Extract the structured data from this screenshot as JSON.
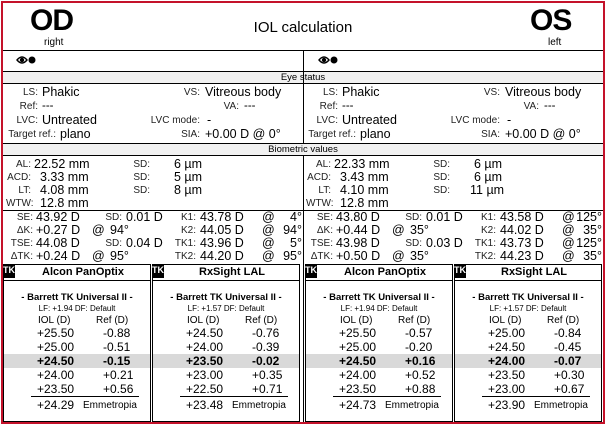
{
  "header": {
    "od_label": "OD",
    "od_sub": "right",
    "os_label": "OS",
    "os_sub": "left",
    "title": "IOL calculation",
    "eye_icon": "eye-icon",
    "accent_color": "#c4122a"
  },
  "sections": {
    "eye_status": "Eye status",
    "biometric": "Biometric values"
  },
  "labels": {
    "ls": "LS:",
    "vs": "VS:",
    "ref": "Ref:",
    "va": "VA:",
    "lvc": "LVC:",
    "lvc_mode": "LVC mode:",
    "target_ref": "Target ref.:",
    "sia": "SIA:",
    "al": "AL:",
    "acd": "ACD:",
    "lt": "LT:",
    "wtw": "WTW:",
    "sd": "SD:",
    "se": "SE:",
    "dk": "ΔK:",
    "tse": "TSE:",
    "dtk": "ΔTK:",
    "k1": "K1:",
    "k2": "K2:",
    "tk1": "TK1:",
    "tk2": "TK2:",
    "at": "@"
  },
  "od": {
    "status": {
      "ls": "Phakic",
      "vs": "Vitreous body",
      "ref": "---",
      "va": "---",
      "lvc": "Untreated",
      "lvc_mode": "-",
      "target_ref": "plano",
      "sia": "+0.00 D @ 0°"
    },
    "bio": {
      "al": "22.52 mm",
      "al_sd": "6 µm",
      "acd": "3.33 mm",
      "acd_sd": "5 µm",
      "lt": "4.08 mm",
      "lt_sd": "8 µm",
      "wtw": "12.8 mm"
    },
    "kera": {
      "se": "43.92 D",
      "se_sd": "0.01 D",
      "dk": "+0.27 D",
      "dk_ax": "94°",
      "tse": "44.08 D",
      "tse_sd": "0.04 D",
      "dtk": "+0.24 D",
      "dtk_ax": "95°",
      "k1": "43.78 D",
      "k1_ax": "4°",
      "k2": "44.05 D",
      "k2_ax": "94°",
      "tk1": "43.96 D",
      "tk1_ax": "5°",
      "tk2": "44.20 D",
      "tk2_ax": "95°"
    },
    "lenses": [
      {
        "tk": "TK",
        "name": "Alcon PanOptix",
        "formula": "- Barrett TK Universal II -",
        "lf": "LF: +1.94  DF: Default",
        "col_iol": "IOL (D)",
        "col_ref": "Ref (D)",
        "rows": [
          [
            "+25.50",
            "-0.88"
          ],
          [
            "+25.00",
            "-0.51"
          ],
          [
            "+24.50",
            "-0.15"
          ],
          [
            "+24.00",
            "+0.21"
          ],
          [
            "+23.50",
            "+0.56"
          ]
        ],
        "highlight": 2,
        "emm_iol": "+24.29",
        "emm_label": "Emmetropia"
      },
      {
        "tk": "TK",
        "name": "RxSight LAL",
        "formula": "- Barrett TK Universal II -",
        "lf": "LF: +1.57  DF: Default",
        "col_iol": "IOL (D)",
        "col_ref": "Ref (D)",
        "rows": [
          [
            "+24.50",
            "-0.76"
          ],
          [
            "+24.00",
            "-0.39"
          ],
          [
            "+23.50",
            "-0.02"
          ],
          [
            "+23.00",
            "+0.35"
          ],
          [
            "+22.50",
            "+0.71"
          ]
        ],
        "highlight": 2,
        "emm_iol": "+23.48",
        "emm_label": "Emmetropia"
      }
    ]
  },
  "os": {
    "status": {
      "ls": "Phakic",
      "vs": "Vitreous body",
      "ref": "---",
      "va": "---",
      "lvc": "Untreated",
      "lvc_mode": "-",
      "target_ref": "plano",
      "sia": "+0.00 D @ 0°"
    },
    "bio": {
      "al": "22.33 mm",
      "al_sd": "6 µm",
      "acd": "3.43 mm",
      "acd_sd": "6 µm",
      "lt": "4.10 mm",
      "lt_sd": "11 µm",
      "wtw": "12.8 mm"
    },
    "kera": {
      "se": "43.80 D",
      "se_sd": "0.01 D",
      "dk": "+0.44 D",
      "dk_ax": "35°",
      "tse": "43.98 D",
      "tse_sd": "0.03 D",
      "dtk": "+0.50 D",
      "dtk_ax": "35°",
      "k1": "43.58 D",
      "k1_ax": "125°",
      "k2": "44.02 D",
      "k2_ax": "35°",
      "tk1": "43.73 D",
      "tk1_ax": "125°",
      "tk2": "44.23 D",
      "tk2_ax": "35°"
    },
    "lenses": [
      {
        "tk": "TK",
        "name": "Alcon PanOptix",
        "formula": "- Barrett TK Universal II -",
        "lf": "LF: +1.94  DF: Default",
        "col_iol": "IOL (D)",
        "col_ref": "Ref (D)",
        "rows": [
          [
            "+25.50",
            "-0.57"
          ],
          [
            "+25.00",
            "-0.20"
          ],
          [
            "+24.50",
            "+0.16"
          ],
          [
            "+24.00",
            "+0.52"
          ],
          [
            "+23.50",
            "+0.88"
          ]
        ],
        "highlight": 2,
        "emm_iol": "+24.73",
        "emm_label": "Emmetropia"
      },
      {
        "tk": "TK",
        "name": "RxSight LAL",
        "formula": "- Barrett TK Universal II -",
        "lf": "LF: +1.57  DF: Default",
        "col_iol": "IOL (D)",
        "col_ref": "Ref (D)",
        "rows": [
          [
            "+25.00",
            "-0.84"
          ],
          [
            "+24.50",
            "-0.45"
          ],
          [
            "+24.00",
            "-0.07"
          ],
          [
            "+23.50",
            "+0.30"
          ],
          [
            "+23.00",
            "+0.67"
          ]
        ],
        "highlight": 2,
        "emm_iol": "+23.90",
        "emm_label": "Emmetropia"
      }
    ]
  }
}
